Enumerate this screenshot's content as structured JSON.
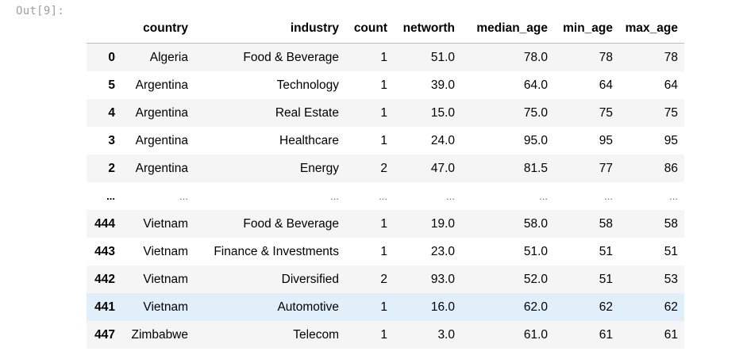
{
  "prompt": "Out[9]:",
  "table": {
    "columns": [
      "",
      "country",
      "industry",
      "count",
      "networth",
      "median_age",
      "min_age",
      "max_age"
    ],
    "rows": [
      {
        "index": "0",
        "cells": [
          "Algeria",
          "Food & Beverage",
          "1",
          "51.0",
          "78.0",
          "78",
          "78"
        ]
      },
      {
        "index": "5",
        "cells": [
          "Argentina",
          "Technology",
          "1",
          "39.0",
          "64.0",
          "64",
          "64"
        ]
      },
      {
        "index": "4",
        "cells": [
          "Argentina",
          "Real Estate",
          "1",
          "15.0",
          "75.0",
          "75",
          "75"
        ]
      },
      {
        "index": "3",
        "cells": [
          "Argentina",
          "Healthcare",
          "1",
          "24.0",
          "95.0",
          "95",
          "95"
        ]
      },
      {
        "index": "2",
        "cells": [
          "Argentina",
          "Energy",
          "2",
          "47.0",
          "81.5",
          "77",
          "86"
        ]
      },
      {
        "index": "...",
        "cells": [
          "...",
          "...",
          "...",
          "...",
          "...",
          "...",
          "..."
        ]
      },
      {
        "index": "444",
        "cells": [
          "Vietnam",
          "Food & Beverage",
          "1",
          "19.0",
          "58.0",
          "58",
          "58"
        ]
      },
      {
        "index": "443",
        "cells": [
          "Vietnam",
          "Finance & Investments",
          "1",
          "23.0",
          "51.0",
          "51",
          "51"
        ]
      },
      {
        "index": "442",
        "cells": [
          "Vietnam",
          "Diversified",
          "2",
          "93.0",
          "52.0",
          "51",
          "53"
        ]
      },
      {
        "index": "441",
        "cells": [
          "Vietnam",
          "Automotive",
          "1",
          "16.0",
          "62.0",
          "62",
          "62"
        ]
      },
      {
        "index": "447",
        "cells": [
          "Zimbabwe",
          "Telecom",
          "1",
          "3.0",
          "61.0",
          "61",
          "61"
        ]
      }
    ],
    "hover_row_color": "#e1effb",
    "stripe_color": "#f5f5f5"
  }
}
